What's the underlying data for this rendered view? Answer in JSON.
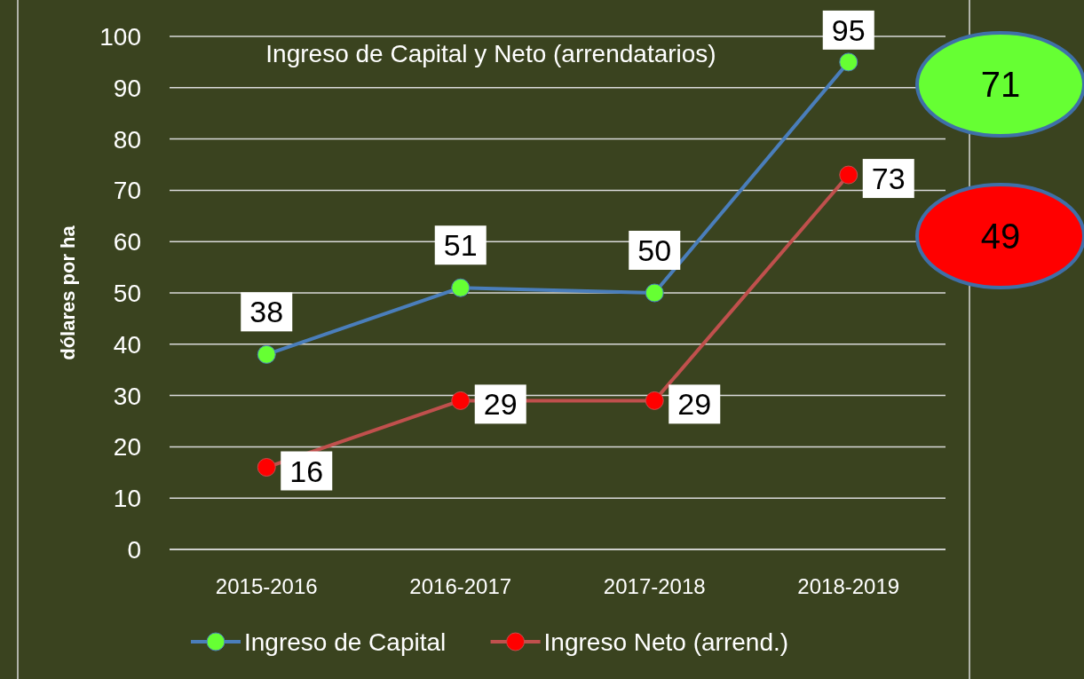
{
  "chart_data": {
    "type": "line",
    "title": "Ingreso de Capital y Neto (arrendatarios)",
    "ylabel": "dólares por ha",
    "categories": [
      "2015-2016",
      "2016-2017",
      "2017-2018",
      "2018-2019"
    ],
    "series": [
      {
        "name": "Ingreso de Capital",
        "color": "#4a7ebb",
        "colors": [
          "#66ff33",
          "#66ff33",
          "#66ff33",
          "#66ff33"
        ],
        "values": [
          38,
          51,
          50,
          95
        ]
      },
      {
        "name": "Ingreso Neto (arrend.)",
        "color": "#c0504d",
        "colors": [
          "#ff0000",
          "#ff0000",
          "#ff0000",
          "#ff0000"
        ],
        "values": [
          16,
          29,
          29,
          73
        ]
      }
    ],
    "ylim": [
      0,
      100
    ],
    "yticks": [
      0,
      10,
      20,
      30,
      40,
      50,
      60,
      70,
      80,
      90,
      100
    ],
    "grid": "y",
    "legend": "bottom",
    "marker": "circle",
    "data_labels": true,
    "annotations": [
      "71",
      "49"
    ]
  }
}
